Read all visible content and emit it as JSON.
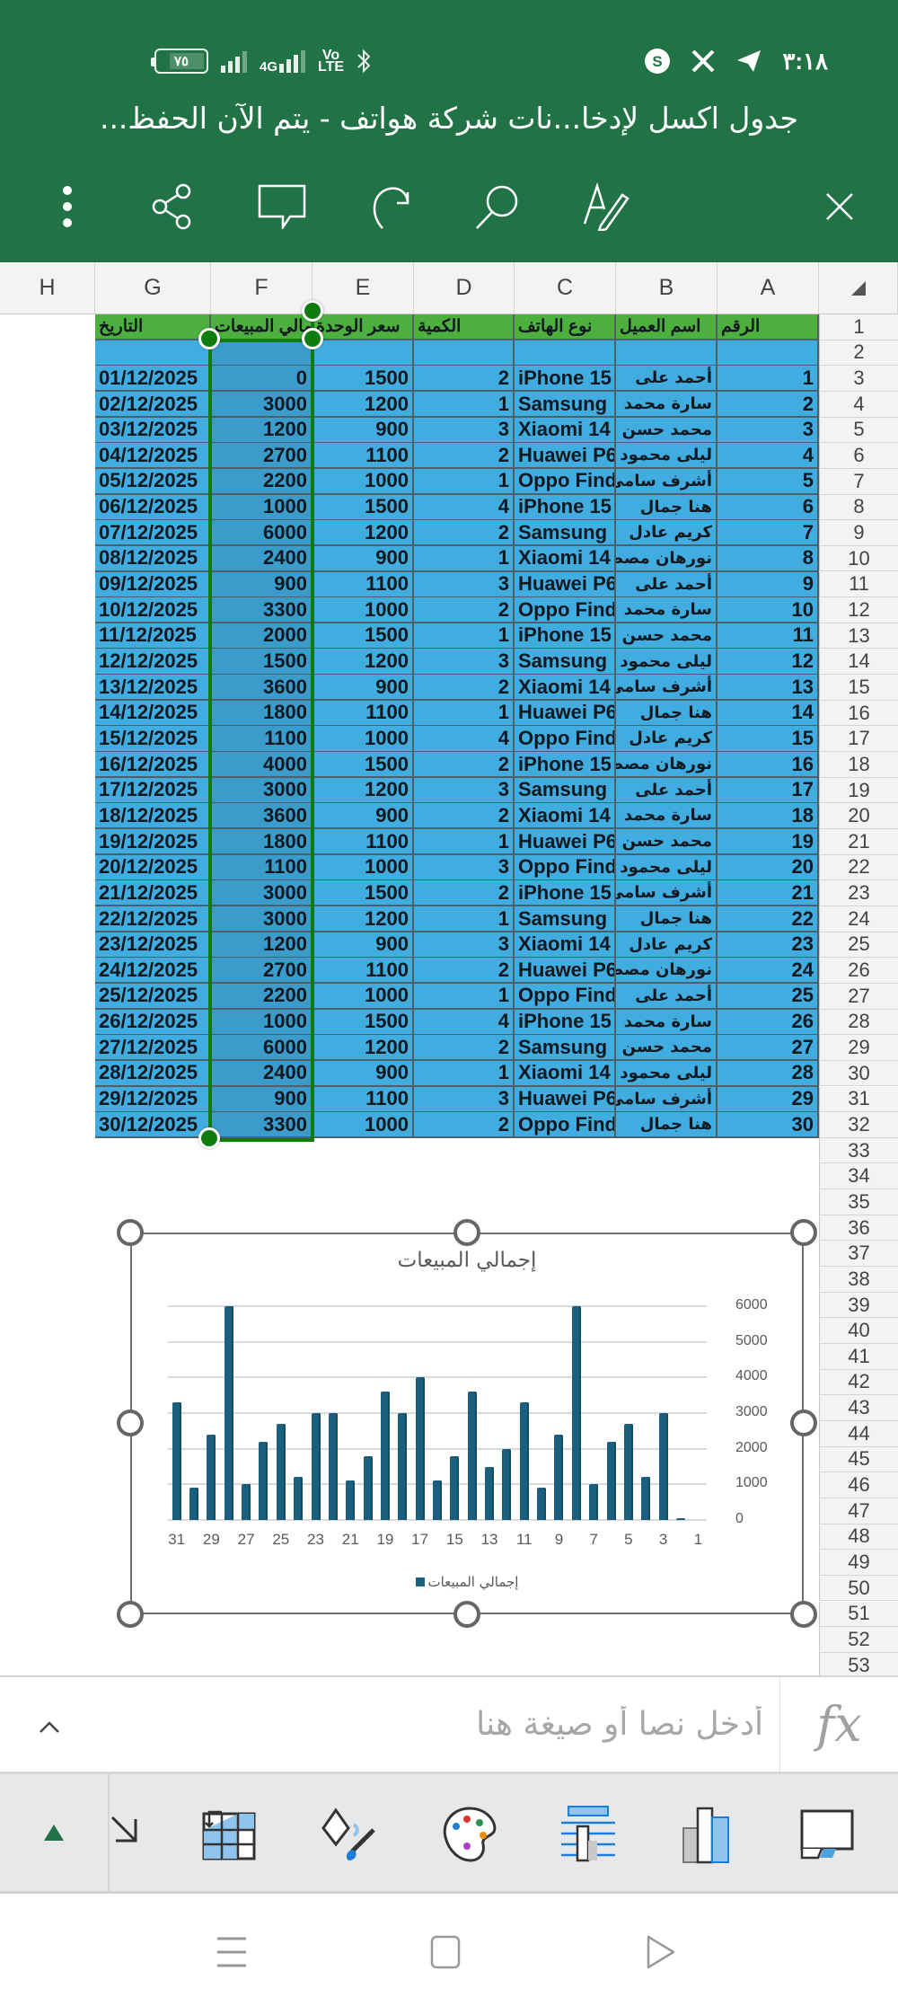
{
  "status_bar": {
    "time": "٣:١٨",
    "battery_level": "٧٥",
    "network": "4G",
    "volte": "VoLTE 2",
    "notification_icons": [
      "s-icon",
      "x-icon",
      "telegram-icon"
    ]
  },
  "header": {
    "title": "جدول اكسل لإدخا...نات شركة هواتف - يتم الآن الحفظ...",
    "toolbar": [
      "more-options",
      "share",
      "comment",
      "redo",
      "search",
      "edit-mode",
      "close"
    ]
  },
  "sheet": {
    "column_headers": [
      "A",
      "B",
      "C",
      "D",
      "E",
      "F",
      "G",
      "H"
    ],
    "header_row": {
      "A": "الرقم",
      "B": "اسم العميل",
      "C": "نوع الهاتف",
      "D": "الكمية",
      "E": "سعر الوحدة",
      "F": "إجمالي المبيعات",
      "G": "التاريخ"
    },
    "rows": [
      {
        "no": "1",
        "client": "أحمد على",
        "phone": "iPhone 15",
        "qty": "2",
        "price": "1500",
        "total": "0",
        "date": "01/12/2025"
      },
      {
        "no": "2",
        "client": "سارة محمد",
        "phone": "Samsung",
        "qty": "1",
        "price": "1200",
        "total": "3000",
        "date": "02/12/2025"
      },
      {
        "no": "3",
        "client": "محمد حسن",
        "phone": "Xiaomi 14",
        "qty": "3",
        "price": "900",
        "total": "1200",
        "date": "03/12/2025"
      },
      {
        "no": "4",
        "client": "ليلى محمود",
        "phone": "Huawei P6",
        "qty": "2",
        "price": "1100",
        "total": "2700",
        "date": "04/12/2025"
      },
      {
        "no": "5",
        "client": "أشرف سامى",
        "phone": "Oppo Find",
        "qty": "1",
        "price": "1000",
        "total": "2200",
        "date": "05/12/2025"
      },
      {
        "no": "6",
        "client": "هنا جمال",
        "phone": "iPhone 15",
        "qty": "4",
        "price": "1500",
        "total": "1000",
        "date": "06/12/2025"
      },
      {
        "no": "7",
        "client": "كريم عادل",
        "phone": "Samsung",
        "qty": "2",
        "price": "1200",
        "total": "6000",
        "date": "07/12/2025"
      },
      {
        "no": "8",
        "client": "نورهان مصطفى",
        "phone": "Xiaomi 14",
        "qty": "1",
        "price": "900",
        "total": "2400",
        "date": "08/12/2025"
      },
      {
        "no": "9",
        "client": "أحمد على",
        "phone": "Huawei P6",
        "qty": "3",
        "price": "1100",
        "total": "900",
        "date": "09/12/2025"
      },
      {
        "no": "10",
        "client": "سارة محمد",
        "phone": "Oppo Find",
        "qty": "2",
        "price": "1000",
        "total": "3300",
        "date": "10/12/2025"
      },
      {
        "no": "11",
        "client": "محمد حسن",
        "phone": "iPhone 15",
        "qty": "1",
        "price": "1500",
        "total": "2000",
        "date": "11/12/2025"
      },
      {
        "no": "12",
        "client": "ليلى محمود",
        "phone": "Samsung",
        "qty": "3",
        "price": "1200",
        "total": "1500",
        "date": "12/12/2025"
      },
      {
        "no": "13",
        "client": "أشرف سامى",
        "phone": "Xiaomi 14",
        "qty": "2",
        "price": "900",
        "total": "3600",
        "date": "13/12/2025"
      },
      {
        "no": "14",
        "client": "هنا جمال",
        "phone": "Huawei P6",
        "qty": "1",
        "price": "1100",
        "total": "1800",
        "date": "14/12/2025"
      },
      {
        "no": "15",
        "client": "كريم عادل",
        "phone": "Oppo Find",
        "qty": "4",
        "price": "1000",
        "total": "1100",
        "date": "15/12/2025"
      },
      {
        "no": "16",
        "client": "نورهان مصطفى",
        "phone": "iPhone 15",
        "qty": "2",
        "price": "1500",
        "total": "4000",
        "date": "16/12/2025"
      },
      {
        "no": "17",
        "client": "أحمد على",
        "phone": "Samsung",
        "qty": "3",
        "price": "1200",
        "total": "3000",
        "date": "17/12/2025"
      },
      {
        "no": "18",
        "client": "سارة محمد",
        "phone": "Xiaomi 14",
        "qty": "2",
        "price": "900",
        "total": "3600",
        "date": "18/12/2025"
      },
      {
        "no": "19",
        "client": "محمد حسن",
        "phone": "Huawei P6",
        "qty": "1",
        "price": "1100",
        "total": "1800",
        "date": "19/12/2025"
      },
      {
        "no": "20",
        "client": "ليلى محمود",
        "phone": "Oppo Find",
        "qty": "3",
        "price": "1000",
        "total": "1100",
        "date": "20/12/2025"
      },
      {
        "no": "21",
        "client": "أشرف سامى",
        "phone": "iPhone 15",
        "qty": "2",
        "price": "1500",
        "total": "3000",
        "date": "21/12/2025"
      },
      {
        "no": "22",
        "client": "هنا جمال",
        "phone": "Samsung",
        "qty": "1",
        "price": "1200",
        "total": "3000",
        "date": "22/12/2025"
      },
      {
        "no": "23",
        "client": "كريم عادل",
        "phone": "Xiaomi 14",
        "qty": "3",
        "price": "900",
        "total": "1200",
        "date": "23/12/2025"
      },
      {
        "no": "24",
        "client": "نورهان مصطفى",
        "phone": "Huawei P6",
        "qty": "2",
        "price": "1100",
        "total": "2700",
        "date": "24/12/2025"
      },
      {
        "no": "25",
        "client": "أحمد على",
        "phone": "Oppo Find",
        "qty": "1",
        "price": "1000",
        "total": "2200",
        "date": "25/12/2025"
      },
      {
        "no": "26",
        "client": "سارة محمد",
        "phone": "iPhone 15",
        "qty": "4",
        "price": "1500",
        "total": "1000",
        "date": "26/12/2025"
      },
      {
        "no": "27",
        "client": "محمد حسن",
        "phone": "Samsung",
        "qty": "2",
        "price": "1200",
        "total": "6000",
        "date": "27/12/2025"
      },
      {
        "no": "28",
        "client": "ليلى محمود",
        "phone": "Xiaomi 14",
        "qty": "1",
        "price": "900",
        "total": "2400",
        "date": "28/12/2025"
      },
      {
        "no": "29",
        "client": "أشرف سامى",
        "phone": "Huawei P6",
        "qty": "3",
        "price": "1100",
        "total": "900",
        "date": "29/12/2025"
      },
      {
        "no": "30",
        "client": "هنا جمال",
        "phone": "Oppo Find",
        "qty": "2",
        "price": "1000",
        "total": "3300",
        "date": "30/12/2025"
      }
    ],
    "row_numbers_visible": [
      1,
      53
    ],
    "selection": "F1:F32"
  },
  "chart_data": {
    "type": "bar",
    "title": "إجمالي المبيعات",
    "xlabel": "",
    "ylabel": "",
    "x_axis_reversed": true,
    "y_axis_position": "right",
    "categories": [
      1,
      2,
      3,
      4,
      5,
      6,
      7,
      8,
      9,
      10,
      11,
      12,
      13,
      14,
      15,
      16,
      17,
      18,
      19,
      20,
      21,
      22,
      23,
      24,
      25,
      26,
      27,
      28,
      29,
      30,
      31
    ],
    "x_tick_labels": [
      "31",
      "29",
      "27",
      "25",
      "23",
      "21",
      "19",
      "17",
      "15",
      "13",
      "11",
      "9",
      "7",
      "5",
      "3",
      "1"
    ],
    "series": [
      {
        "name": "إجمالي المبيعات",
        "color": "#1a5f7e",
        "values": [
          null,
          0,
          3000,
          1200,
          2700,
          2200,
          1000,
          6000,
          2400,
          900,
          3300,
          2000,
          1500,
          3600,
          1800,
          1100,
          4000,
          3000,
          3600,
          1800,
          1100,
          3000,
          3000,
          1200,
          2700,
          2200,
          1000,
          6000,
          2400,
          900,
          3300
        ]
      }
    ],
    "y_ticks": [
      "0",
      "1000",
      "2000",
      "3000",
      "4000",
      "5000",
      "6000"
    ],
    "ylim": [
      0,
      6000
    ],
    "grid": true,
    "legend": {
      "position": "bottom",
      "entries": [
        "إجمالي المبيعات"
      ]
    }
  },
  "formula_bar": {
    "fx_label": "fx",
    "placeholder": "أدخل نصا أو صيغة هنا",
    "value": ""
  },
  "ribbon": {
    "items": [
      "collapse",
      "resize",
      "switch-row-column",
      "format-fill",
      "color-palette",
      "chart-layout",
      "chart-type",
      "chart-elements"
    ]
  },
  "colors": {
    "header_green": "#217346",
    "table_header_green": "#4caf3e",
    "cell_blue": "#41acdf",
    "selection_green": "#107c10",
    "bar_color": "#1a5f7e"
  }
}
